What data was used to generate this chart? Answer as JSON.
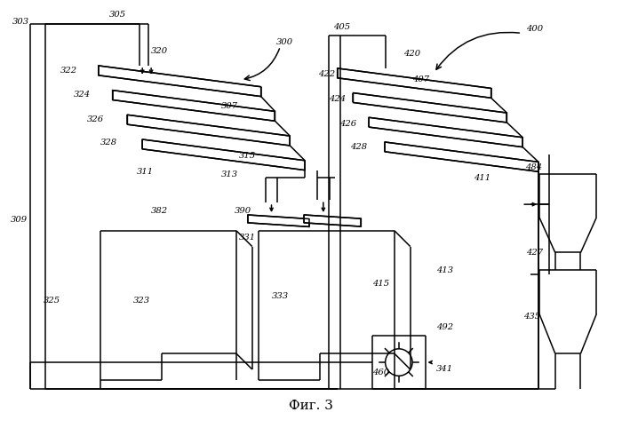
{
  "title": "Фиг. 3",
  "bg_color": "#ffffff",
  "line_color": "#000000",
  "lw": 1.1,
  "fig_width": 7.0,
  "fig_height": 4.82
}
